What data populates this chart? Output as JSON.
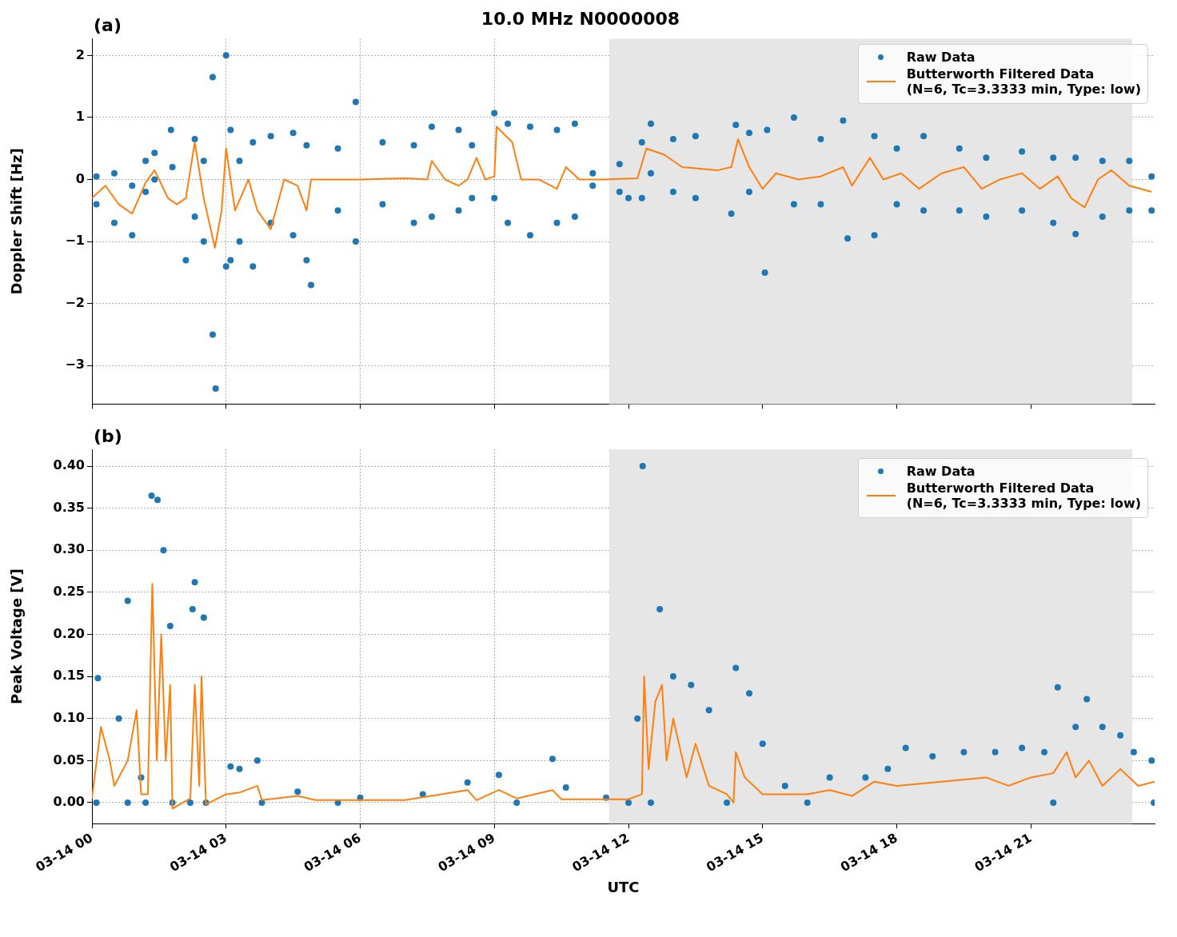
{
  "chart_data": [
    {
      "type": "scatter",
      "title": "10.0 MHz N0000008",
      "ylabel": "Doppler Shift [Hz]",
      "annotations": [
        "(a)"
      ],
      "xlim": [
        "--03-14T00:00",
        "--03-14T23:46"
      ],
      "ylim": [
        -3.62,
        2.27
      ],
      "xticks": [
        {
          "value": "--03-14T00:00",
          "label": null
        },
        {
          "value": "--03-14T03:00",
          "label": null
        },
        {
          "value": "--03-14T06:00",
          "label": null
        },
        {
          "value": "--03-14T09:00",
          "label": null
        },
        {
          "value": "--03-14T12:00",
          "label": null
        },
        {
          "value": "--03-14T15:00",
          "label": null
        },
        {
          "value": "--03-14T18:00",
          "label": null
        },
        {
          "value": "--03-14T21:00",
          "label": null
        }
      ],
      "yticks": [
        {
          "value": -3,
          "label": "−3"
        },
        {
          "value": -2,
          "label": "−2"
        },
        {
          "value": -1,
          "label": "−1"
        },
        {
          "value": 0,
          "label": "0"
        },
        {
          "value": 1,
          "label": "1"
        },
        {
          "value": 2,
          "label": "2"
        }
      ],
      "tick_labels": "y",
      "grid": true,
      "legend": "top right",
      "bands": [
        {
          "axis": "x",
          "from": "--03-14T11:34",
          "to": "--03-14T23:16",
          "color": "#e6e6e6"
        }
      ],
      "series": [
        {
          "name": "Raw Data",
          "type": "scatter",
          "marker": "circle",
          "color": "#1f77b4",
          "x": [
            "--03-14T00:06",
            "--03-14T00:06",
            "--03-14T00:30",
            "--03-14T00:30",
            "--03-14T00:54",
            "--03-14T00:54",
            "--03-14T01:12",
            "--03-14T01:12",
            "--03-14T01:24",
            "--03-14T01:24",
            "--03-14T01:46",
            "--03-14T01:48",
            "--03-14T02:06",
            "--03-14T02:18",
            "--03-14T02:18",
            "--03-14T02:30",
            "--03-14T02:30",
            "--03-14T02:42",
            "--03-14T02:42",
            "--03-14T02:46",
            "--03-14T03:00",
            "--03-14T03:00",
            "--03-14T03:06",
            "--03-14T03:06",
            "--03-14T03:18",
            "--03-14T03:18",
            "--03-14T03:36",
            "--03-14T03:36",
            "--03-14T04:00",
            "--03-14T04:00",
            "--03-14T04:30",
            "--03-14T04:30",
            "--03-14T04:48",
            "--03-14T04:48",
            "--03-14T04:54",
            "--03-14T05:30",
            "--03-14T05:30",
            "--03-14T05:54",
            "--03-14T05:54",
            "--03-14T06:30",
            "--03-14T06:30",
            "--03-14T07:12",
            "--03-14T07:12",
            "--03-14T07:36",
            "--03-14T07:36",
            "--03-14T08:12",
            "--03-14T08:12",
            "--03-14T08:30",
            "--03-14T08:30",
            "--03-14T09:00",
            "--03-14T09:00",
            "--03-14T09:18",
            "--03-14T09:18",
            "--03-14T09:48",
            "--03-14T09:48",
            "--03-14T10:24",
            "--03-14T10:24",
            "--03-14T10:48",
            "--03-14T10:48",
            "--03-14T11:12",
            "--03-14T11:12",
            "--03-14T11:48",
            "--03-14T11:48",
            "--03-14T12:00",
            "--03-14T12:18",
            "--03-14T12:18",
            "--03-14T12:30",
            "--03-14T12:30",
            "--03-14T13:00",
            "--03-14T13:00",
            "--03-14T13:30",
            "--03-14T13:30",
            "--03-14T14:18",
            "--03-14T14:24",
            "--03-14T14:42",
            "--03-14T14:42",
            "--03-14T15:03",
            "--03-14T15:06",
            "--03-14T15:42",
            "--03-14T15:42",
            "--03-14T16:18",
            "--03-14T16:18",
            "--03-14T16:48",
            "--03-14T16:54",
            "--03-14T17:30",
            "--03-14T17:30",
            "--03-14T18:00",
            "--03-14T18:00",
            "--03-14T18:36",
            "--03-14T18:36",
            "--03-14T19:24",
            "--03-14T19:24",
            "--03-14T20:00",
            "--03-14T20:00",
            "--03-14T20:48",
            "--03-14T20:48",
            "--03-14T21:30",
            "--03-14T21:30",
            "--03-14T22:00",
            "--03-14T22:00",
            "--03-14T22:36",
            "--03-14T22:36",
            "--03-14T23:12",
            "--03-14T23:12",
            "--03-14T23:42",
            "--03-14T23:42"
          ],
          "values": [
            0.05,
            -0.4,
            0.1,
            -0.7,
            -0.1,
            -0.9,
            0.3,
            -0.2,
            0.43,
            0.0,
            0.8,
            0.2,
            -1.3,
            0.65,
            -0.6,
            0.3,
            -1.0,
            1.65,
            -2.5,
            -3.37,
            2.0,
            -1.4,
            0.8,
            -1.3,
            0.3,
            -1.0,
            0.6,
            -1.4,
            0.7,
            -0.7,
            0.75,
            -0.9,
            0.55,
            -1.3,
            -1.7,
            0.5,
            -0.5,
            1.25,
            -1.0,
            0.6,
            -0.4,
            0.55,
            -0.7,
            0.85,
            -0.6,
            0.8,
            -0.5,
            0.55,
            -0.3,
            1.07,
            -0.3,
            0.9,
            -0.7,
            0.85,
            -0.9,
            0.8,
            -0.7,
            0.9,
            -0.6,
            0.1,
            -0.1,
            0.25,
            -0.2,
            -0.3,
            0.6,
            -0.3,
            0.9,
            0.1,
            0.65,
            -0.2,
            0.7,
            -0.3,
            -0.55,
            0.88,
            0.75,
            -0.2,
            -1.5,
            0.8,
            1.0,
            -0.4,
            0.65,
            -0.4,
            0.95,
            -0.95,
            0.7,
            -0.9,
            0.5,
            -0.4,
            0.7,
            -0.5,
            0.5,
            -0.5,
            0.35,
            -0.6,
            0.45,
            -0.5,
            0.35,
            -0.7,
            0.35,
            -0.88,
            0.3,
            -0.6,
            0.3,
            -0.5,
            0.05,
            -0.5
          ]
        },
        {
          "name": "Butterworth Filtered Data\n(N=6, Tc=3.3333 min, Type: low)",
          "type": "line",
          "color": "#ff7f0e",
          "x": [
            "--03-14T00:00",
            "--03-14T00:18",
            "--03-14T00:36",
            "--03-14T00:54",
            "--03-14T01:12",
            "--03-14T01:24",
            "--03-14T01:42",
            "--03-14T01:54",
            "--03-14T02:06",
            "--03-14T02:18",
            "--03-14T02:30",
            "--03-14T02:45",
            "--03-14T02:54",
            "--03-14T03:00",
            "--03-14T03:12",
            "--03-14T03:30",
            "--03-14T03:42",
            "--03-14T04:00",
            "--03-14T04:18",
            "--03-14T04:36",
            "--03-14T04:48",
            "--03-14T04:54",
            "--03-14T05:30",
            "--03-14T06:00",
            "--03-14T07:00",
            "--03-14T07:30",
            "--03-14T07:36",
            "--03-14T07:54",
            "--03-14T08:12",
            "--03-14T08:24",
            "--03-14T08:36",
            "--03-14T08:48",
            "--03-14T09:00",
            "--03-14T09:03",
            "--03-14T09:24",
            "--03-14T09:36",
            "--03-14T10:00",
            "--03-14T10:24",
            "--03-14T10:36",
            "--03-14T10:54",
            "--03-14T11:30",
            "--03-14T12:12",
            "--03-14T12:24",
            "--03-14T12:48",
            "--03-14T13:12",
            "--03-14T14:00",
            "--03-14T14:18",
            "--03-14T14:27",
            "--03-14T14:42",
            "--03-14T15:00",
            "--03-14T15:18",
            "--03-14T15:48",
            "--03-14T16:18",
            "--03-14T16:48",
            "--03-14T17:00",
            "--03-14T17:24",
            "--03-14T17:42",
            "--03-14T18:06",
            "--03-14T18:30",
            "--03-14T19:00",
            "--03-14T19:30",
            "--03-14T19:54",
            "--03-14T20:18",
            "--03-14T20:48",
            "--03-14T21:12",
            "--03-14T21:36",
            "--03-14T21:54",
            "--03-14T22:12",
            "--03-14T22:30",
            "--03-14T22:48",
            "--03-14T23:12",
            "--03-14T23:42"
          ],
          "values": [
            -0.3,
            -0.1,
            -0.4,
            -0.55,
            -0.05,
            0.15,
            -0.3,
            -0.4,
            -0.3,
            0.6,
            -0.3,
            -1.1,
            -0.5,
            0.5,
            -0.5,
            0.0,
            -0.5,
            -0.8,
            0.0,
            -0.1,
            -0.5,
            0.0,
            0.0,
            0.0,
            0.02,
            0.0,
            0.3,
            0.0,
            -0.1,
            0.0,
            0.35,
            0.0,
            0.05,
            0.85,
            0.6,
            0.0,
            0.0,
            -0.15,
            0.2,
            0.0,
            0.0,
            0.02,
            0.5,
            0.4,
            0.2,
            0.15,
            0.2,
            0.65,
            0.2,
            -0.15,
            0.1,
            0.0,
            0.05,
            0.2,
            -0.1,
            0.35,
            0.0,
            0.1,
            -0.15,
            0.1,
            0.2,
            -0.15,
            0.0,
            0.1,
            -0.15,
            0.05,
            -0.3,
            -0.45,
            0.0,
            0.15,
            -0.1,
            -0.2
          ]
        }
      ]
    },
    {
      "type": "scatter",
      "xlabel": "UTC",
      "ylabel": "Peak Voltage [V]",
      "annotations": [
        "(b)"
      ],
      "xlim": [
        "--03-14T00:00",
        "--03-14T23:46"
      ],
      "ylim": [
        -0.025,
        0.42
      ],
      "xticks": [
        {
          "value": "--03-14T00:00",
          "label": "03-14 00"
        },
        {
          "value": "--03-14T03:00",
          "label": "03-14 03"
        },
        {
          "value": "--03-14T06:00",
          "label": "03-14 06"
        },
        {
          "value": "--03-14T09:00",
          "label": "03-14 09"
        },
        {
          "value": "--03-14T12:00",
          "label": "03-14 12"
        },
        {
          "value": "--03-14T15:00",
          "label": "03-14 15"
        },
        {
          "value": "--03-14T18:00",
          "label": "03-14 18"
        },
        {
          "value": "--03-14T21:00",
          "label": "03-14 21"
        }
      ],
      "yticks": [
        {
          "value": 0,
          "label": "0.00"
        },
        {
          "value": 0.05,
          "label": "0.05"
        },
        {
          "value": 0.1,
          "label": "0.10"
        },
        {
          "value": 0.15,
          "label": "0.15"
        },
        {
          "value": 0.2,
          "label": "0.20"
        },
        {
          "value": 0.25,
          "label": "0.25"
        },
        {
          "value": 0.3,
          "label": "0.30"
        },
        {
          "value": 0.35,
          "label": "0.35"
        },
        {
          "value": 0.4,
          "label": "0.40"
        }
      ],
      "grid": true,
      "legend": "top right",
      "bands": [
        {
          "axis": "x",
          "from": "--03-14T11:34",
          "to": "--03-14T23:16",
          "color": "#e6e6e6"
        }
      ],
      "series": [
        {
          "name": "Raw Data",
          "type": "scatter",
          "marker": "circle",
          "color": "#1f77b4",
          "x": [
            "--03-14T00:06",
            "--03-14T00:08",
            "--03-14T00:36",
            "--03-14T00:48",
            "--03-14T00:48",
            "--03-14T01:06",
            "--03-14T01:12",
            "--03-14T01:20",
            "--03-14T01:28",
            "--03-14T01:36",
            "--03-14T01:45",
            "--03-14T01:48",
            "--03-14T02:12",
            "--03-14T02:15",
            "--03-14T02:18",
            "--03-14T02:30",
            "--03-14T02:33",
            "--03-14T03:06",
            "--03-14T03:18",
            "--03-14T03:42",
            "--03-14T03:48",
            "--03-14T04:36",
            "--03-14T05:30",
            "--03-14T06:00",
            "--03-14T07:24",
            "--03-14T08:24",
            "--03-14T09:06",
            "--03-14T09:30",
            "--03-14T10:18",
            "--03-14T10:36",
            "--03-14T11:30",
            "--03-14T12:00",
            "--03-14T12:12",
            "--03-14T12:19",
            "--03-14T12:30",
            "--03-14T12:42",
            "--03-14T13:00",
            "--03-14T13:24",
            "--03-14T13:48",
            "--03-14T14:12",
            "--03-14T14:24",
            "--03-14T14:42",
            "--03-14T15:00",
            "--03-14T15:30",
            "--03-14T16:00",
            "--03-14T16:30",
            "--03-14T17:18",
            "--03-14T17:48",
            "--03-14T18:12",
            "--03-14T18:48",
            "--03-14T19:30",
            "--03-14T20:12",
            "--03-14T20:48",
            "--03-14T21:18",
            "--03-14T21:30",
            "--03-14T21:36",
            "--03-14T22:00",
            "--03-14T22:15",
            "--03-14T22:36",
            "--03-14T23:00",
            "--03-14T23:18",
            "--03-14T23:42",
            "--03-14T23:45"
          ],
          "values": [
            0.0,
            0.148,
            0.1,
            0.0,
            0.24,
            0.03,
            0.0,
            0.365,
            0.36,
            0.3,
            0.21,
            0.0,
            0.0,
            0.23,
            0.262,
            0.22,
            0.0,
            0.043,
            0.04,
            0.05,
            0.0,
            0.013,
            0.0,
            0.006,
            0.01,
            0.024,
            0.033,
            0.0,
            0.052,
            0.018,
            0.006,
            0.0,
            0.1,
            0.4,
            0.0,
            0.23,
            0.15,
            0.14,
            0.11,
            0.0,
            0.16,
            0.13,
            0.07,
            0.02,
            0.0,
            0.03,
            0.03,
            0.04,
            0.065,
            0.055,
            0.06,
            0.06,
            0.065,
            0.06,
            0.0,
            0.137,
            0.09,
            0.123,
            0.09,
            0.08,
            0.06,
            0.05,
            0.0
          ]
        },
        {
          "name": "Butterworth Filtered Data\n(N=6, Tc=3.3333 min, Type: low)",
          "type": "line",
          "color": "#ff7f0e",
          "x": [
            "--03-14T00:00",
            "--03-14T00:12",
            "--03-14T00:24",
            "--03-14T00:30",
            "--03-14T00:48",
            "--03-14T01:00",
            "--03-14T01:06",
            "--03-14T01:15",
            "--03-14T01:21",
            "--03-14T01:27",
            "--03-14T01:33",
            "--03-14T01:39",
            "--03-14T01:45",
            "--03-14T01:48",
            "--03-14T02:12",
            "--03-14T02:18",
            "--03-14T02:24",
            "--03-14T02:27",
            "--03-14T02:33",
            "--03-14T03:00",
            "--03-14T03:18",
            "--03-14T03:42",
            "--03-14T03:48",
            "--03-14T04:36",
            "--03-14T05:00",
            "--03-14T07:00",
            "--03-14T08:24",
            "--03-14T08:36",
            "--03-14T09:06",
            "--03-14T09:30",
            "--03-14T10:18",
            "--03-14T10:30",
            "--03-14T12:00",
            "--03-14T12:18",
            "--03-14T12:21",
            "--03-14T12:27",
            "--03-14T12:36",
            "--03-14T12:45",
            "--03-14T12:51",
            "--03-14T13:00",
            "--03-14T13:18",
            "--03-14T13:30",
            "--03-14T13:48",
            "--03-14T14:12",
            "--03-14T14:21",
            "--03-14T14:24",
            "--03-14T14:36",
            "--03-14T15:00",
            "--03-14T16:00",
            "--03-14T16:30",
            "--03-14T17:00",
            "--03-14T17:30",
            "--03-14T18:00",
            "--03-14T19:00",
            "--03-14T20:00",
            "--03-14T20:30",
            "--03-14T21:00",
            "--03-14T21:30",
            "--03-14T21:48",
            "--03-14T22:00",
            "--03-14T22:18",
            "--03-14T22:36",
            "--03-14T23:00",
            "--03-14T23:24",
            "--03-14T23:46"
          ],
          "values": [
            0.005,
            0.09,
            0.05,
            0.02,
            0.05,
            0.11,
            0.01,
            0.01,
            0.26,
            0.05,
            0.2,
            0.05,
            0.14,
            -0.007,
            0.005,
            0.14,
            0.02,
            0.15,
            -0.002,
            0.01,
            0.012,
            0.02,
            0.003,
            0.008,
            0.003,
            0.003,
            0.015,
            0.003,
            0.015,
            0.005,
            0.015,
            0.004,
            0.004,
            0.01,
            0.15,
            0.04,
            0.12,
            0.14,
            0.05,
            0.1,
            0.03,
            0.07,
            0.02,
            0.01,
            0.0,
            0.06,
            0.03,
            0.01,
            0.01,
            0.015,
            0.008,
            0.025,
            0.02,
            0.025,
            0.03,
            0.02,
            0.03,
            0.035,
            0.06,
            0.03,
            0.05,
            0.02,
            0.04,
            0.02,
            0.025
          ]
        }
      ]
    }
  ]
}
